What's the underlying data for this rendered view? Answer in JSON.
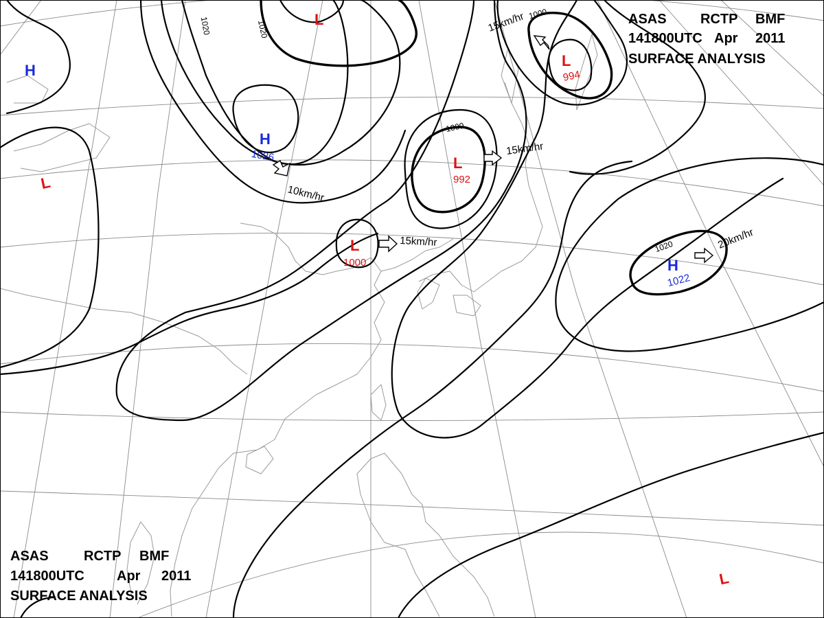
{
  "header_top": {
    "line1": [
      "ASAS",
      "RCTP",
      "BMF"
    ],
    "line2": [
      "141800UTC",
      "Apr",
      "2011"
    ],
    "line3": "SURFACE ANALYSIS"
  },
  "header_bottom": {
    "line1": [
      "ASAS",
      "RCTP",
      "BMF"
    ],
    "line2": [
      "141800UTC",
      "Apr",
      "2011"
    ],
    "line3": "SURFACE ANALYSIS"
  },
  "pressure_systems": [
    {
      "id": "high-west",
      "symbol": "H",
      "value": ""
    },
    {
      "id": "low-west",
      "symbol": "L",
      "value": ""
    },
    {
      "id": "low-north",
      "symbol": "L",
      "value": ""
    },
    {
      "id": "high-mongolia",
      "symbol": "H",
      "value": "1026"
    },
    {
      "id": "low-manchuria",
      "symbol": "L",
      "value": "992"
    },
    {
      "id": "low-okhotsk",
      "symbol": "L",
      "value": "994"
    },
    {
      "id": "low-bohai",
      "symbol": "L",
      "value": "1000"
    },
    {
      "id": "high-pacific",
      "symbol": "H",
      "value": "1022"
    },
    {
      "id": "low-southeast",
      "symbol": "L",
      "value": ""
    }
  ],
  "isobar_labels": {
    "a": "1020",
    "b": "1020",
    "c": "1000",
    "d": "1000",
    "e": "1020"
  },
  "motion": {
    "high_mongolia": "10km/hr",
    "low_manchuria": "15km/hr",
    "low_okhotsk": "15km/hr",
    "low_bohai": "15km/hr",
    "high_pacific": "20km/hr"
  },
  "colors": {
    "high": "#1a2bd6",
    "low": "#e01010",
    "isobar": "#000000",
    "grid": "#8a8a8a",
    "coast": "#9a9a9a"
  }
}
